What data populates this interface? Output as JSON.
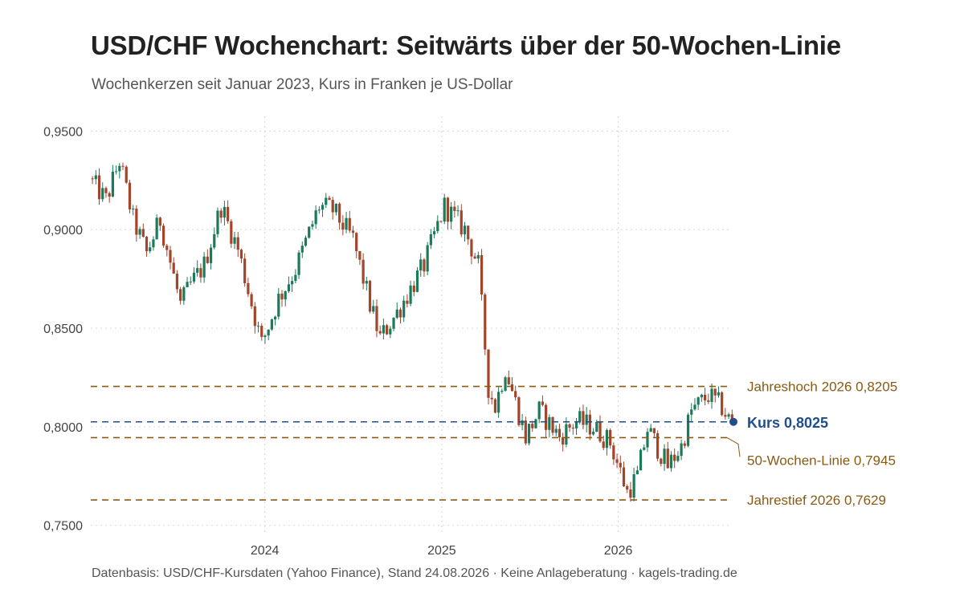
{
  "chart_data": {
    "type": "candlestick",
    "title": "USD/CHF Wochenchart: Seitwärts über der 50-Wochen-Linie",
    "subtitle": "Wochenkerzen seit Januar 2023, Kurs in Franken je US-Dollar",
    "caption": "Datenbasis: USD/CHF-Kursdaten (Yahoo Finance), Stand 24.08.2026 · Keine Anlageberatung · kagels-trading.de",
    "xlim": [
      "2023-01-06",
      "2026-08-24"
    ],
    "ylim": [
      0.745,
      0.9575
    ],
    "y_ticks": [
      {
        "value": 0.95,
        "label": "0,9500"
      },
      {
        "value": 0.9,
        "label": "0,9000"
      },
      {
        "value": 0.85,
        "label": "0,8500"
      },
      {
        "value": 0.8,
        "label": "0,8000"
      },
      {
        "value": 0.75,
        "label": "0,7500"
      }
    ],
    "x_ticks": [
      {
        "date": "2024-01-01",
        "label": "2024"
      },
      {
        "date": "2025-01-01",
        "label": "2025"
      },
      {
        "date": "2026-01-01",
        "label": "2026"
      }
    ],
    "grid": true,
    "colors": {
      "up": "#1b7a5a",
      "down": "#a2452a",
      "level": "#8a5a14",
      "current": "#1f4e8c"
    },
    "levels": [
      {
        "name": "Jahreshoch 2026",
        "value": 0.8205,
        "label": "Jahreshoch 2026 0,8205"
      },
      {
        "name": "Kurs",
        "value": 0.8025,
        "label": "Kurs 0,8025"
      },
      {
        "name": "50-Wochen-Linie",
        "value": 0.7945,
        "label": "50-Wochen-Linie 0,7945"
      },
      {
        "name": "Jahrestief 2026",
        "value": 0.7629,
        "label": "Jahrestief 2026 0,7629"
      }
    ],
    "anchors": [
      {
        "date": "2023-01-06",
        "value": 0.926
      },
      {
        "date": "2023-02-10",
        "value": 0.915
      },
      {
        "date": "2023-03-10",
        "value": 0.935
      },
      {
        "date": "2023-04-07",
        "value": 0.905
      },
      {
        "date": "2023-05-05",
        "value": 0.888
      },
      {
        "date": "2023-06-02",
        "value": 0.905
      },
      {
        "date": "2023-07-14",
        "value": 0.862
      },
      {
        "date": "2023-08-04",
        "value": 0.872
      },
      {
        "date": "2023-09-01",
        "value": 0.882
      },
      {
        "date": "2023-10-06",
        "value": 0.912
      },
      {
        "date": "2023-11-10",
        "value": 0.89
      },
      {
        "date": "2023-12-29",
        "value": 0.842
      },
      {
        "date": "2024-02-02",
        "value": 0.865
      },
      {
        "date": "2024-03-08",
        "value": 0.88
      },
      {
        "date": "2024-04-26",
        "value": 0.912
      },
      {
        "date": "2024-05-24",
        "value": 0.91
      },
      {
        "date": "2024-07-05",
        "value": 0.895
      },
      {
        "date": "2024-08-09",
        "value": 0.862
      },
      {
        "date": "2024-08-30",
        "value": 0.845
      },
      {
        "date": "2024-10-04",
        "value": 0.858
      },
      {
        "date": "2024-11-29",
        "value": 0.882
      },
      {
        "date": "2025-01-10",
        "value": 0.912
      },
      {
        "date": "2025-02-21",
        "value": 0.9
      },
      {
        "date": "2025-03-21",
        "value": 0.882
      },
      {
        "date": "2025-04-11",
        "value": 0.82
      },
      {
        "date": "2025-04-25",
        "value": 0.81
      },
      {
        "date": "2025-05-16",
        "value": 0.83
      },
      {
        "date": "2025-06-27",
        "value": 0.795
      },
      {
        "date": "2025-07-25",
        "value": 0.808
      },
      {
        "date": "2025-09-05",
        "value": 0.795
      },
      {
        "date": "2025-10-10",
        "value": 0.803
      },
      {
        "date": "2025-11-14",
        "value": 0.8
      },
      {
        "date": "2025-12-19",
        "value": 0.792
      },
      {
        "date": "2026-01-23",
        "value": 0.767
      },
      {
        "date": "2026-02-13",
        "value": 0.775
      },
      {
        "date": "2026-03-06",
        "value": 0.799
      },
      {
        "date": "2026-04-17",
        "value": 0.78
      },
      {
        "date": "2026-05-15",
        "value": 0.79
      },
      {
        "date": "2026-06-05",
        "value": 0.808
      },
      {
        "date": "2026-07-10",
        "value": 0.816
      },
      {
        "date": "2026-08-07",
        "value": 0.81
      },
      {
        "date": "2026-08-24",
        "value": 0.8025
      }
    ]
  }
}
